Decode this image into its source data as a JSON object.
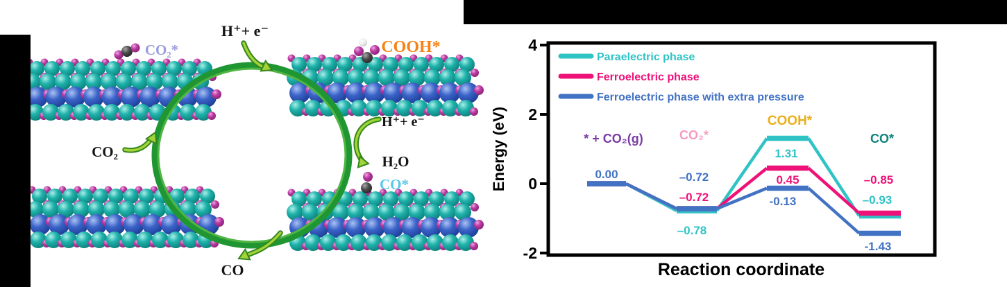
{
  "figure": {
    "left_diagram": {
      "adsorbate_co2_label": "CO₂*",
      "proton_electron_top": "H⁺+ e⁻",
      "cooh_label": "COOH*",
      "proton_electron_right": "H⁺+ e⁻",
      "water_label": "H₂O",
      "adsorbate_co_label": "CO*",
      "co2_input_label": "CO₂",
      "co_output_label": "CO",
      "label_colors": {
        "co2_adsorbed": "#9a9edd",
        "cooh": "#f58216",
        "co_adsorbed": "#56c8ea",
        "black": "#151515"
      }
    },
    "chart": {
      "ylabel": "Energy (eV)",
      "xlabel": "Reaction coordinate",
      "yticks": [
        "4",
        "2",
        "0",
        "-2"
      ],
      "legend": [
        {
          "label": "Paraelectric phase",
          "color": "#2fc3c6"
        },
        {
          "label": "Ferroelectric phase",
          "color": "#ee1178"
        },
        {
          "label": "Ferroelectric phase with extra pressure",
          "color": "#4272c3"
        }
      ],
      "state_labels": [
        {
          "text": "* + CO₂(g)",
          "color": "#7a3ca6"
        },
        {
          "text": "CO₂*",
          "color": "#f79ac1"
        },
        {
          "text": "COOH*",
          "color": "#eaaf1e"
        },
        {
          "text": "CO*",
          "color": "#0f837c"
        }
      ],
      "value_labels": {
        "s1_blue": "0.00",
        "s2_blue": "–0.72",
        "s2_pink": "–0.72",
        "s2_teal": "–0.78",
        "s3_teal": "1.31",
        "s3_pink": "0.45",
        "s3_blue": "-0.13",
        "s4_pink": "–0.85",
        "s4_teal": "–0.93",
        "s4_blue": "-1.43"
      }
    }
  },
  "chart_data": {
    "type": "line",
    "subtype": "energy-step-diagram",
    "title": "",
    "xlabel": "Reaction coordinate",
    "ylabel": "Energy (eV)",
    "ylim": [
      -2,
      4
    ],
    "yticks": [
      4,
      2,
      0,
      -2
    ],
    "categories": [
      "* + CO₂(g)",
      "CO₂*",
      "COOH*",
      "CO*"
    ],
    "series": [
      {
        "name": "Paraelectric phase",
        "color": "#2fc3c6",
        "values": [
          0.0,
          -0.78,
          1.31,
          -0.93
        ]
      },
      {
        "name": "Ferroelectric phase",
        "color": "#ee1178",
        "values": [
          0.0,
          -0.72,
          0.45,
          -0.85
        ]
      },
      {
        "name": "Ferroelectric phase with extra pressure",
        "color": "#4272c3",
        "values": [
          0.0,
          -0.72,
          -0.13,
          -1.43
        ]
      }
    ],
    "legend_position": "top-left",
    "grid": false
  }
}
